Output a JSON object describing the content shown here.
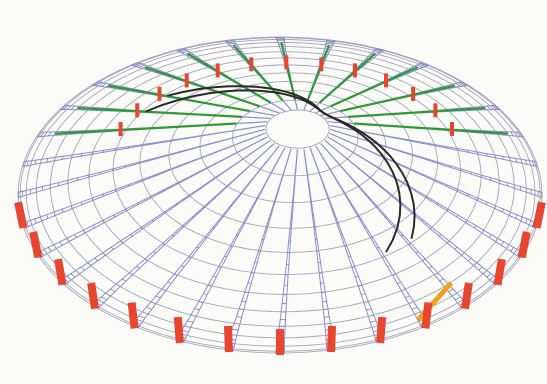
{
  "figure": {
    "subject": "dome-space-frame",
    "rib_count": 32,
    "ring_count": 13,
    "colors": {
      "background": "#fbfbf8",
      "grid": "#8a8fd0",
      "grid_dark": "#5c62b0",
      "ring_line": "#9a9ab8",
      "green_band": "#2f9a33",
      "red_support": "#e8462e",
      "orange_ring": "#f0a020",
      "black_arch": "#2a2a2a"
    }
  }
}
